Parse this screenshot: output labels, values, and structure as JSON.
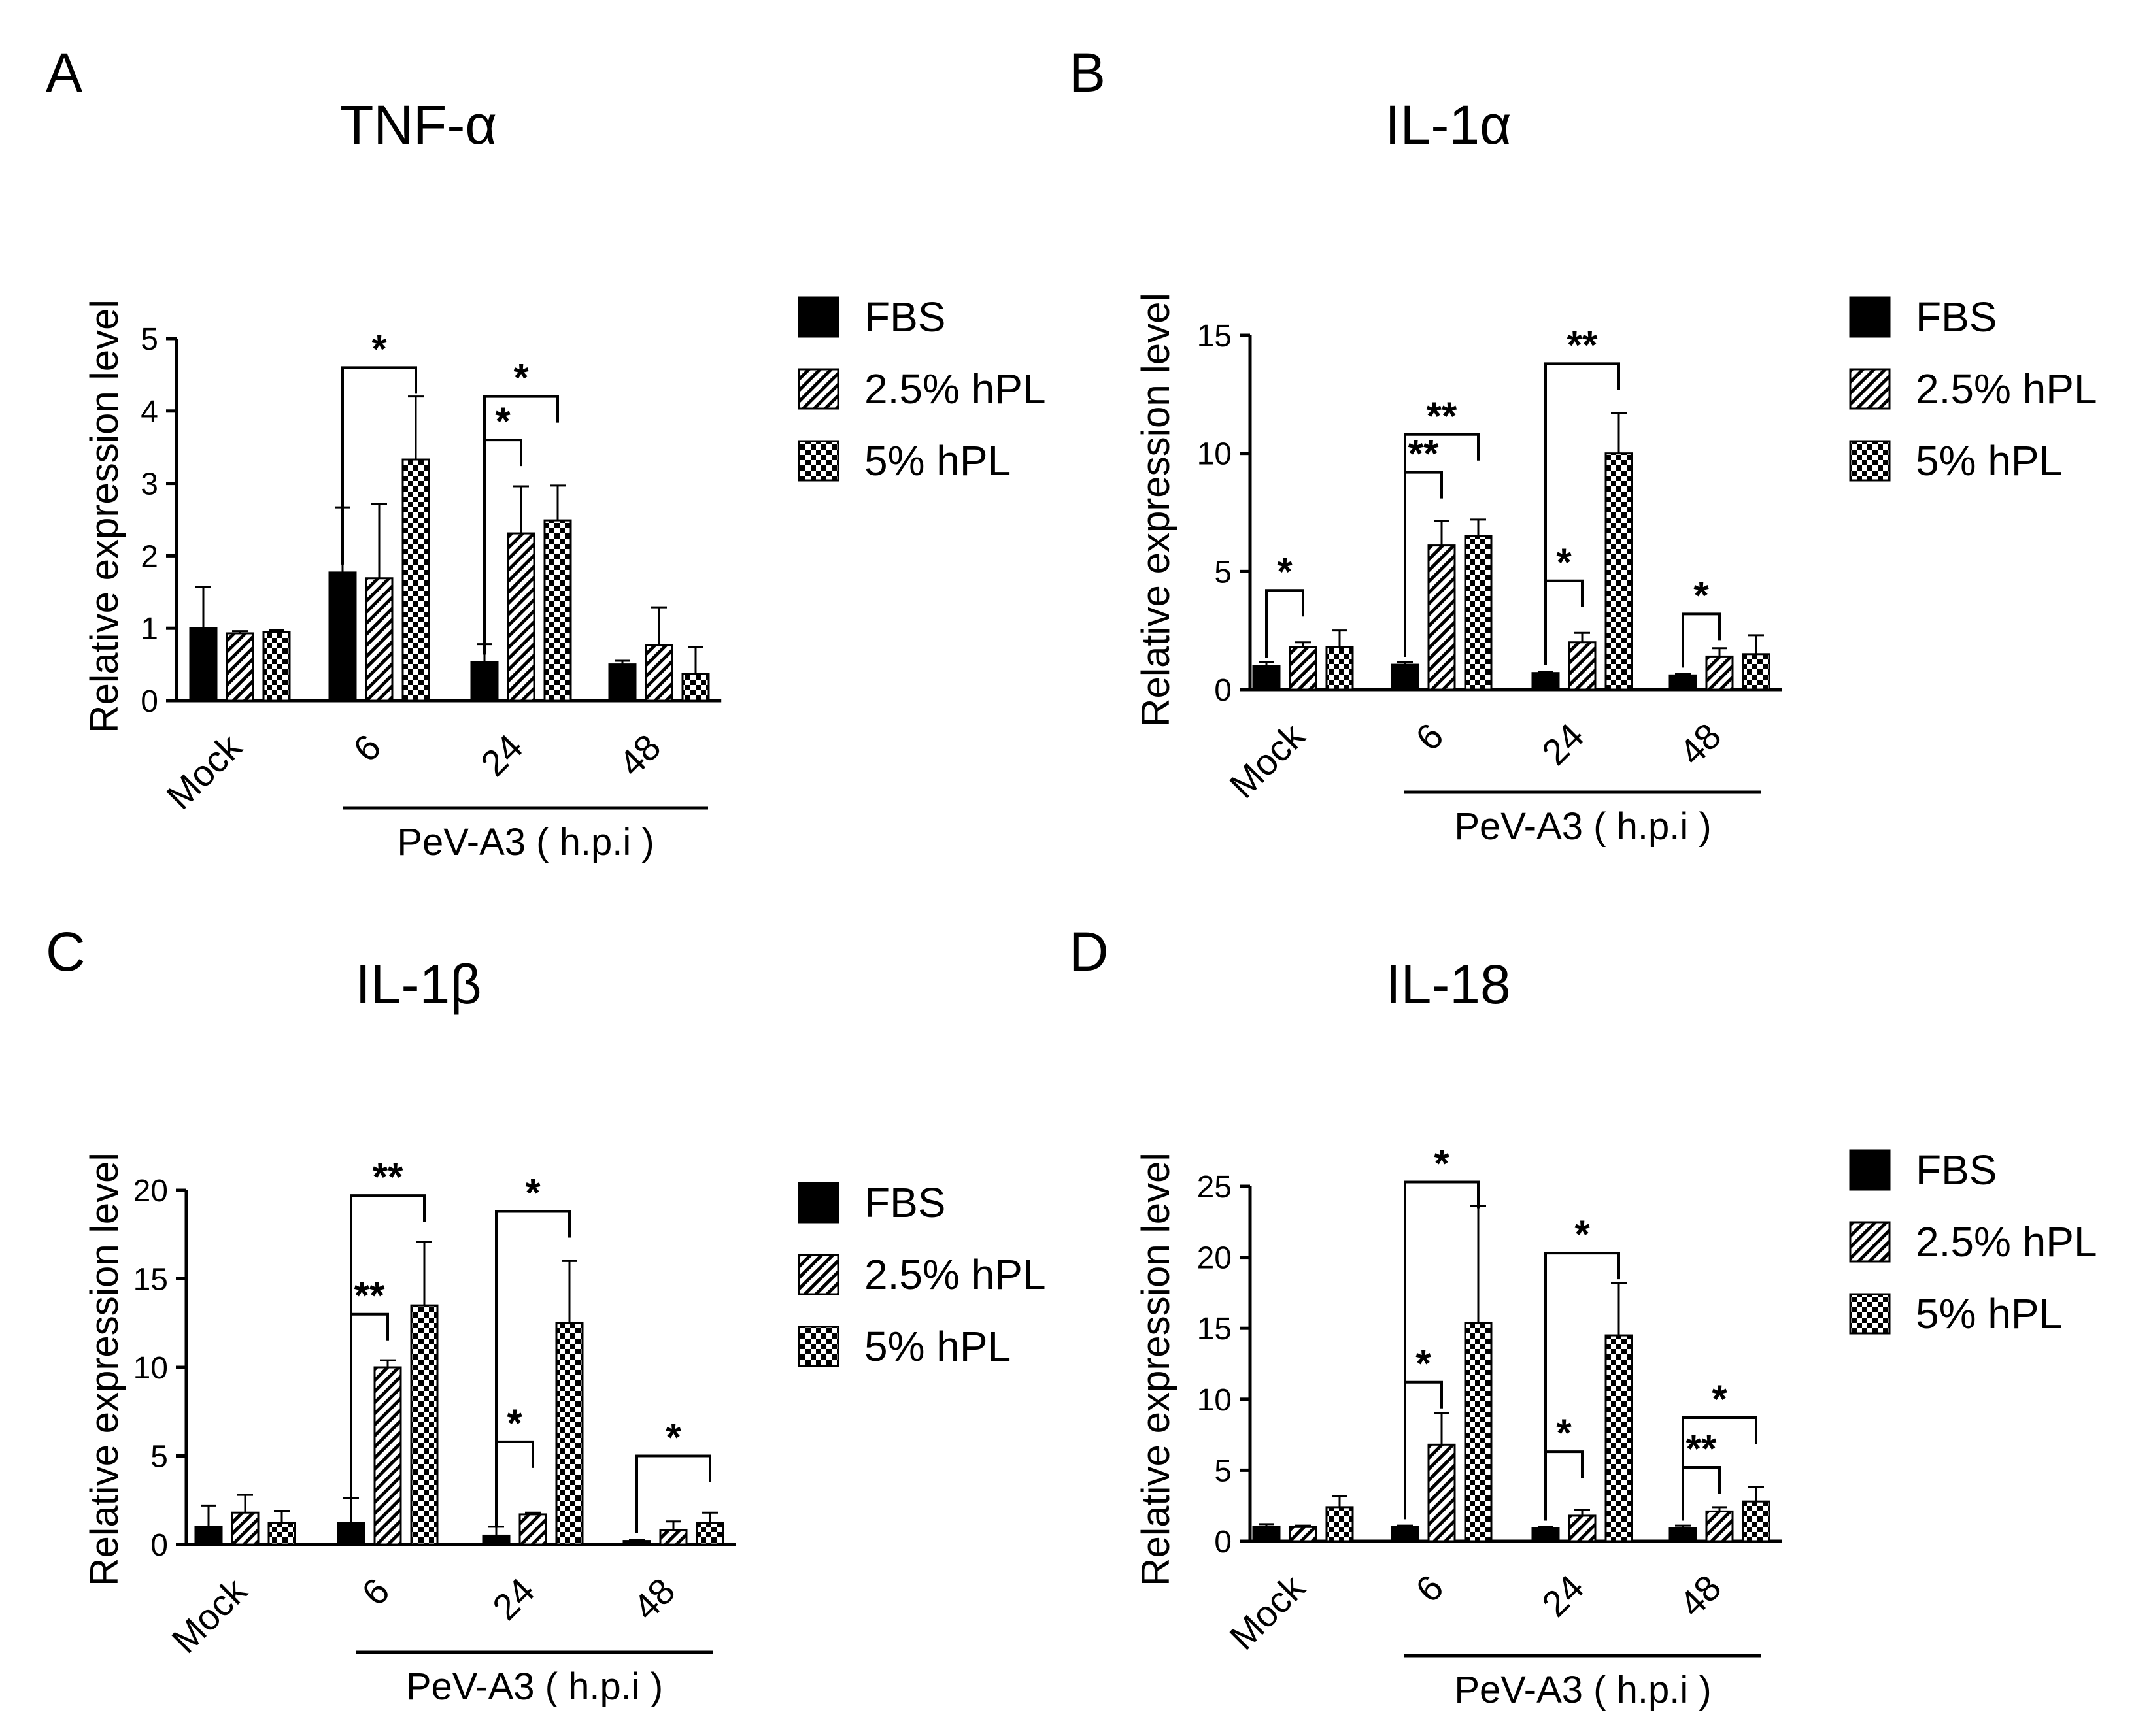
{
  "legend_entries": [
    {
      "name": "FBS",
      "pattern": "solid"
    },
    {
      "name": "2.5% hPL",
      "pattern": "hatch"
    },
    {
      "name": "5% hPL",
      "pattern": "checker"
    }
  ],
  "colors": {
    "ink": "#000000",
    "background": "#ffffff"
  },
  "chart_data": [
    {
      "panel": "A",
      "type": "bar",
      "title": "TNF-α",
      "ylabel": "Relative expression level",
      "ylim": [
        0,
        5
      ],
      "yticks": [
        0,
        1,
        2,
        3,
        4,
        5
      ],
      "categories": [
        "Mock",
        "6",
        "24",
        "48"
      ],
      "xgroup_label": "PeV-A3 ( h.p.i )",
      "series": [
        {
          "name": "FBS",
          "values": [
            1.0,
            1.77,
            0.53,
            0.5
          ],
          "errors": [
            0.57,
            0.9,
            0.25,
            0.05
          ]
        },
        {
          "name": "2.5% hPL",
          "values": [
            0.93,
            1.69,
            2.31,
            0.77
          ],
          "errors": [
            0.03,
            1.03,
            0.65,
            0.52
          ]
        },
        {
          "name": "5% hPL",
          "values": [
            0.95,
            3.33,
            2.49,
            0.37
          ],
          "errors": [
            0.02,
            0.87,
            0.48,
            0.37
          ]
        }
      ],
      "significance": [
        {
          "group": 1,
          "from": 0,
          "to": 2,
          "level": 4.6,
          "label": "*"
        },
        {
          "group": 2,
          "from": 0,
          "to": 2,
          "level": 4.2,
          "label": "*"
        },
        {
          "group": 2,
          "from": 0,
          "to": 1,
          "level": 3.6,
          "label": "*"
        }
      ]
    },
    {
      "panel": "B",
      "type": "bar",
      "title": "IL-1α",
      "ylabel": "Relative expression level",
      "ylim": [
        0,
        15
      ],
      "yticks": [
        0,
        5,
        10,
        15
      ],
      "categories": [
        "Mock",
        "6",
        "24",
        "48"
      ],
      "xgroup_label": "PeV-A3 ( h.p.i )",
      "series": [
        {
          "name": "FBS",
          "values": [
            1.0,
            1.05,
            0.7,
            0.6
          ],
          "errors": [
            0.15,
            0.1,
            0.05,
            0.05
          ]
        },
        {
          "name": "2.5% hPL",
          "values": [
            1.8,
            6.1,
            2.0,
            1.4
          ],
          "errors": [
            0.2,
            1.05,
            0.4,
            0.35
          ]
        },
        {
          "name": "5% hPL",
          "values": [
            1.8,
            6.5,
            10.0,
            1.5
          ],
          "errors": [
            0.7,
            0.7,
            1.7,
            0.8
          ]
        }
      ],
      "significance": [
        {
          "group": 0,
          "from": 0,
          "to": 1,
          "level": 4.2,
          "label": "*"
        },
        {
          "group": 1,
          "from": 0,
          "to": 2,
          "level": 10.8,
          "label": "**"
        },
        {
          "group": 1,
          "from": 0,
          "to": 1,
          "level": 9.2,
          "label": "**"
        },
        {
          "group": 2,
          "from": 0,
          "to": 2,
          "level": 13.8,
          "label": "**"
        },
        {
          "group": 2,
          "from": 0,
          "to": 1,
          "level": 4.6,
          "label": "*"
        },
        {
          "group": 3,
          "from": 0,
          "to": 1,
          "level": 3.2,
          "label": "*"
        }
      ]
    },
    {
      "panel": "C",
      "type": "bar",
      "title": "IL-1β",
      "ylabel": "Relative expression level",
      "ylim": [
        0,
        20
      ],
      "yticks": [
        0,
        5,
        10,
        15,
        20
      ],
      "categories": [
        "Mock",
        "6",
        "24",
        "48"
      ],
      "xgroup_label": "PeV-A3 ( h.p.i )",
      "series": [
        {
          "name": "FBS",
          "values": [
            1.0,
            1.2,
            0.5,
            0.2
          ],
          "errors": [
            1.2,
            1.4,
            0.5,
            0.05
          ]
        },
        {
          "name": "2.5% hPL",
          "values": [
            1.8,
            10.0,
            1.7,
            0.8
          ],
          "errors": [
            1.0,
            0.4,
            0.1,
            0.5
          ]
        },
        {
          "name": "5% hPL",
          "values": [
            1.2,
            13.5,
            12.5,
            1.2
          ],
          "errors": [
            0.7,
            3.6,
            3.5,
            0.6
          ]
        }
      ],
      "significance": [
        {
          "group": 1,
          "from": 0,
          "to": 2,
          "level": 19.7,
          "label": "**"
        },
        {
          "group": 1,
          "from": 0,
          "to": 1,
          "level": 13.0,
          "label": "**"
        },
        {
          "group": 2,
          "from": 0,
          "to": 2,
          "level": 18.8,
          "label": "*"
        },
        {
          "group": 2,
          "from": 0,
          "to": 1,
          "level": 5.8,
          "label": "*"
        },
        {
          "group": 3,
          "from": 0,
          "to": 2,
          "level": 5.0,
          "label": "*"
        }
      ]
    },
    {
      "panel": "D",
      "type": "bar",
      "title": "IL-18",
      "ylabel": "Relative expression level",
      "ylim": [
        0,
        25
      ],
      "yticks": [
        0,
        5,
        10,
        15,
        20,
        25
      ],
      "categories": [
        "Mock",
        "6",
        "24",
        "48"
      ],
      "xgroup_label": "PeV-A3 ( h.p.i )",
      "series": [
        {
          "name": "FBS",
          "values": [
            1.0,
            1.0,
            0.9,
            0.9
          ],
          "errors": [
            0.2,
            0.1,
            0.1,
            0.2
          ]
        },
        {
          "name": "2.5% hPL",
          "values": [
            1.0,
            6.8,
            1.8,
            2.1
          ],
          "errors": [
            0.1,
            2.2,
            0.4,
            0.3
          ]
        },
        {
          "name": "5% hPL",
          "values": [
            2.4,
            15.4,
            14.5,
            2.8
          ],
          "errors": [
            0.8,
            8.2,
            3.7,
            1.0
          ]
        }
      ],
      "significance": [
        {
          "group": 1,
          "from": 0,
          "to": 2,
          "level": 25.3,
          "label": "*"
        },
        {
          "group": 1,
          "from": 0,
          "to": 1,
          "level": 11.2,
          "label": "*"
        },
        {
          "group": 2,
          "from": 0,
          "to": 2,
          "level": 20.3,
          "label": "*"
        },
        {
          "group": 2,
          "from": 0,
          "to": 1,
          "level": 6.3,
          "label": "*"
        },
        {
          "group": 3,
          "from": 0,
          "to": 2,
          "level": 8.7,
          "label": "*"
        },
        {
          "group": 3,
          "from": 0,
          "to": 1,
          "level": 5.2,
          "label": "**"
        }
      ]
    }
  ]
}
